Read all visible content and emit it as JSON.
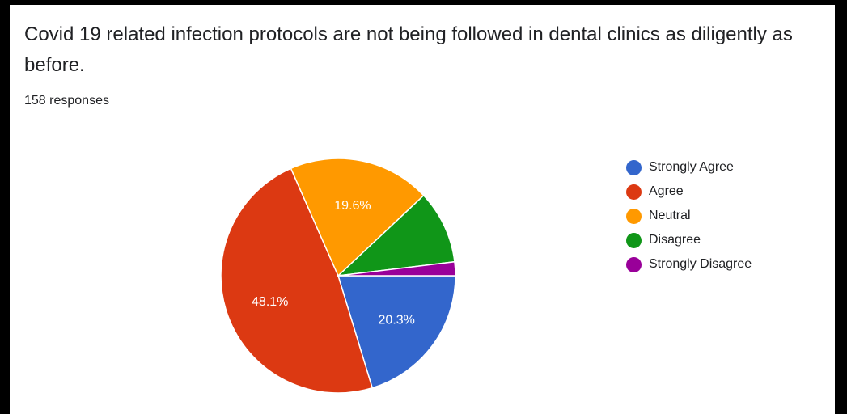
{
  "question": "Covid 19 related infection protocols are not being followed in dental clinics as diligently as before.",
  "responses": "158 responses",
  "chart_data": {
    "type": "pie",
    "categories": [
      "Strongly Agree",
      "Agree",
      "Neutral",
      "Disagree",
      "Strongly Disagree"
    ],
    "values": [
      20.3,
      48.1,
      19.6,
      10.1,
      1.9
    ],
    "labels": [
      "20.3%",
      "48.1%",
      "19.6%",
      "",
      ""
    ],
    "colors": [
      "#3366cc",
      "#dc3912",
      "#ff9900",
      "#109618",
      "#990099"
    ],
    "legend_position": "right",
    "start": "right",
    "direction": "clockwise"
  }
}
